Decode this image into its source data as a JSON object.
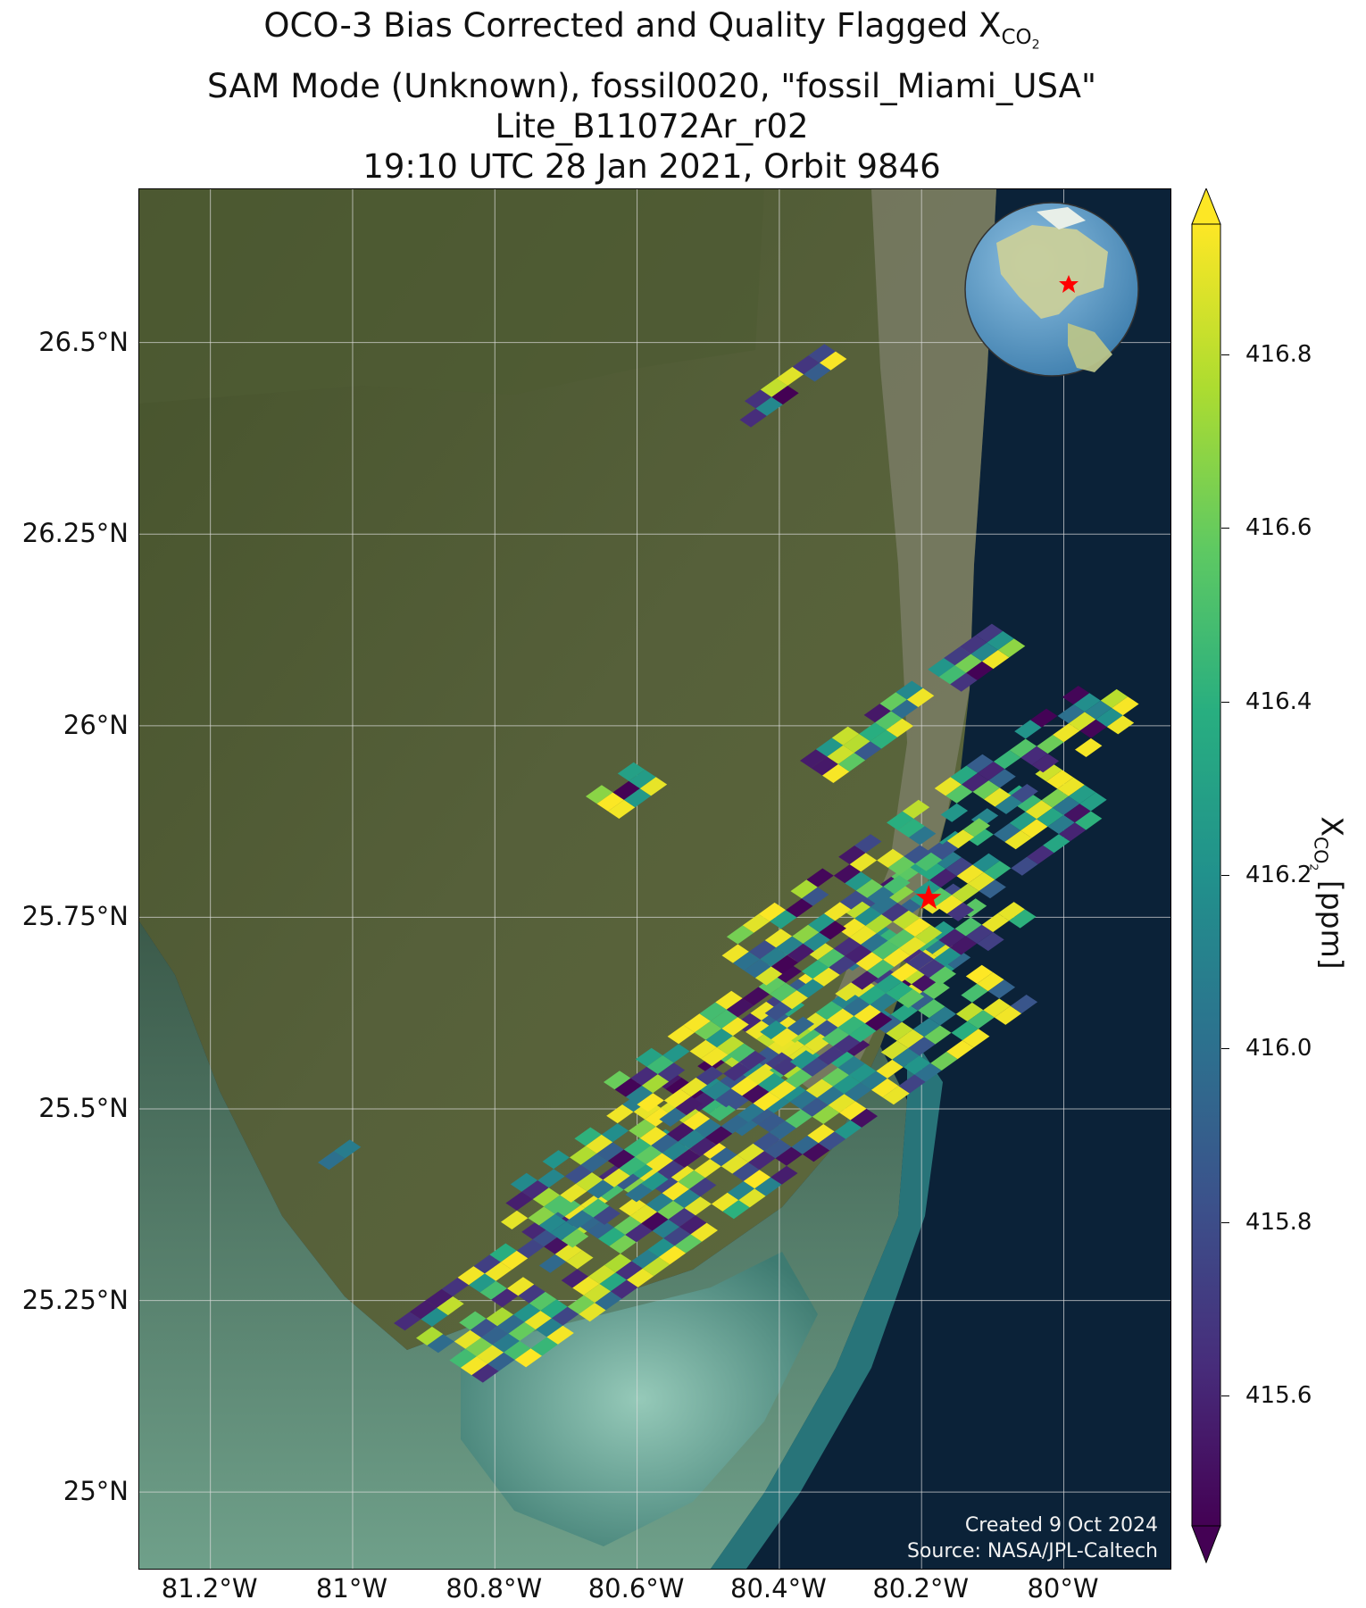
{
  "title": {
    "line1_main": "OCO-3 Bias Corrected and Quality Flagged X",
    "line1_sub": "CO",
    "line1_subsub": "2",
    "line2": "SAM Mode (Unknown), fossil0020, \"fossil_Miami_USA\"",
    "line3": "Lite_B11072Ar_r02",
    "line4": "19:10 UTC 28 Jan 2021, Orbit 9846"
  },
  "map": {
    "extent": {
      "lon_min": -81.3,
      "lon_max": -79.85,
      "lat_min": 24.9,
      "lat_max": 26.7
    },
    "lat_ticks": [
      {
        "value": 26.5,
        "label": "26.5°N"
      },
      {
        "value": 26.25,
        "label": "26.25°N"
      },
      {
        "value": 26.0,
        "label": "26°N"
      },
      {
        "value": 25.75,
        "label": "25.75°N"
      },
      {
        "value": 25.5,
        "label": "25.5°N"
      },
      {
        "value": 25.25,
        "label": "25.25°N"
      },
      {
        "value": 25.0,
        "label": "25°N"
      }
    ],
    "lon_ticks": [
      {
        "value": -81.2,
        "label": "81.2°W"
      },
      {
        "value": -81.0,
        "label": "81°W"
      },
      {
        "value": -80.8,
        "label": "80.8°W"
      },
      {
        "value": -80.6,
        "label": "80.6°W"
      },
      {
        "value": -80.4,
        "label": "80.4°W"
      },
      {
        "value": -80.2,
        "label": "80.2°W"
      },
      {
        "value": -80.0,
        "label": "80°W"
      }
    ],
    "target_marker": {
      "lon": -80.19,
      "lat": 25.775,
      "color": "#ff0000",
      "icon": "star-icon"
    },
    "colors": {
      "ocean": "#0b2238",
      "land": "#4a5a2e",
      "grid": "#dddddd"
    }
  },
  "colorbar": {
    "vmin": 415.45,
    "vmax": 416.95,
    "ticks": [
      {
        "value": 416.8,
        "label": "416.8"
      },
      {
        "value": 416.6,
        "label": "416.6"
      },
      {
        "value": 416.4,
        "label": "416.4"
      },
      {
        "value": 416.2,
        "label": "416.2"
      },
      {
        "value": 416.0,
        "label": "416.0"
      },
      {
        "value": 415.8,
        "label": "415.8"
      },
      {
        "value": 415.6,
        "label": "415.6"
      }
    ],
    "label_main": "X",
    "label_sub": "CO",
    "label_subsub": "2",
    "label_unit": " [ppm]",
    "colormap": "viridis"
  },
  "inset_globe": {
    "icon": "globe-icon",
    "marker_color": "#ff0000"
  },
  "credits": {
    "line1": "Created 9 Oct 2024",
    "line2": "Source: NASA/JPL-Caltech"
  }
}
